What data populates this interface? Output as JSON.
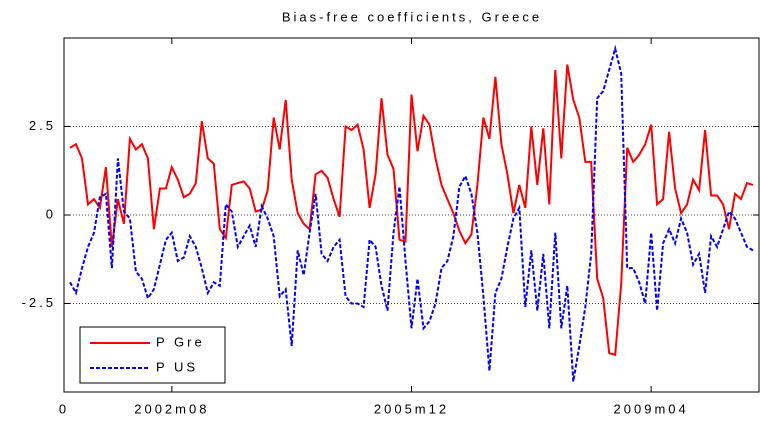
{
  "chart_data": {
    "type": "line",
    "title": "Bias-free coefficients, Greece",
    "x": [
      1,
      2,
      3,
      4,
      5,
      6,
      7,
      8,
      9,
      10,
      11,
      12,
      13,
      14,
      15,
      16,
      17,
      18,
      19,
      20,
      21,
      22,
      23,
      24,
      25,
      26,
      27,
      28,
      29,
      30,
      31,
      32,
      33,
      34,
      35,
      36,
      37,
      38,
      39,
      40,
      41,
      42,
      43,
      44,
      45,
      46,
      47,
      48,
      49,
      50,
      51,
      52,
      53,
      54,
      55,
      56,
      57,
      58,
      59,
      60,
      61,
      62,
      63,
      64,
      65,
      66,
      67,
      68,
      69,
      70,
      71,
      72,
      73,
      74,
      75,
      76,
      77,
      78,
      79,
      80,
      81,
      82,
      83,
      84,
      85,
      86,
      87,
      88,
      89,
      90,
      91,
      92,
      93,
      94,
      95,
      96,
      97,
      98,
      99,
      100,
      101,
      102,
      103,
      104,
      105,
      106,
      107,
      108,
      109,
      110,
      111,
      112,
      113,
      114,
      115
    ],
    "series": [
      {
        "name": "P Gre",
        "color": "#ff0000",
        "style": "solid",
        "values": [
          1.9,
          2.0,
          1.6,
          0.3,
          0.45,
          0.2,
          1.35,
          -0.9,
          0.45,
          -0.25,
          2.15,
          1.85,
          2.0,
          1.6,
          -0.4,
          0.75,
          0.75,
          1.35,
          1.0,
          0.5,
          0.6,
          0.9,
          2.65,
          1.6,
          1.45,
          -0.4,
          -0.65,
          0.85,
          0.9,
          0.95,
          0.75,
          0.1,
          0.15,
          0.7,
          2.75,
          1.85,
          3.25,
          1.0,
          0.05,
          -0.25,
          -0.4,
          1.15,
          1.25,
          1.05,
          0.45,
          -0.05,
          2.5,
          2.4,
          2.55,
          1.85,
          0.2,
          1.15,
          3.3,
          1.7,
          1.3,
          -0.7,
          -0.75,
          3.4,
          1.8,
          2.8,
          2.55,
          1.6,
          0.85,
          0.45,
          0.05,
          -0.45,
          -0.8,
          -0.55,
          0.85,
          2.75,
          2.15,
          3.9,
          2.0,
          1.15,
          0.05,
          0.85,
          0.2,
          2.5,
          0.85,
          2.45,
          0.3,
          4.1,
          1.6,
          4.25,
          3.25,
          2.75,
          1.5,
          1.5,
          -1.8,
          -2.35,
          -3.9,
          -3.95,
          -1.95,
          1.9,
          1.5,
          1.7,
          2.0,
          2.55,
          0.3,
          0.45,
          2.35,
          0.75,
          0.05,
          0.3,
          1.0,
          0.7,
          2.4,
          0.55,
          0.55,
          0.3,
          -0.4,
          0.6,
          0.45,
          0.9,
          0.85
        ]
      },
      {
        "name": "P US",
        "color": "#0000ff",
        "style": "dashed",
        "values": [
          -1.9,
          -2.2,
          -1.5,
          -0.9,
          -0.5,
          0.5,
          0.6,
          -1.5,
          1.6,
          0.1,
          -0.1,
          -1.6,
          -1.8,
          -2.35,
          -2.1,
          -1.4,
          -0.7,
          -0.5,
          -1.3,
          -1.2,
          -0.6,
          -0.9,
          -1.5,
          -2.2,
          -1.9,
          -2.0,
          0.3,
          0.1,
          -0.9,
          -0.6,
          -0.3,
          -0.9,
          0.25,
          -0.1,
          -0.6,
          -2.3,
          -2.1,
          -3.7,
          -1.0,
          -1.7,
          -0.5,
          0.6,
          -1.1,
          -1.3,
          -0.9,
          -0.7,
          -2.3,
          -2.5,
          -2.5,
          -2.6,
          -0.7,
          -0.9,
          -2.0,
          -2.7,
          -0.5,
          0.8,
          -1.3,
          -3.2,
          -1.8,
          -3.2,
          -3.0,
          -2.5,
          -1.5,
          -1.3,
          -0.6,
          0.8,
          1.1,
          0.6,
          -0.5,
          -2.3,
          -4.4,
          -2.2,
          -1.8,
          -0.9,
          -0.1,
          0.2,
          -2.6,
          -1.0,
          -2.7,
          -1.1,
          -3.2,
          -0.5,
          -3.2,
          -2.0,
          -4.7,
          -3.7,
          -2.6,
          -1.1,
          3.3,
          3.5,
          4.1,
          4.7,
          4.0,
          -1.5,
          -1.5,
          -1.9,
          -2.5,
          -0.5,
          -2.7,
          -0.8,
          -0.4,
          -0.8,
          -0.1,
          -0.5,
          -1.4,
          -1.1,
          -2.2,
          -0.6,
          -0.9,
          -0.4,
          0.1,
          -0.1,
          -0.5,
          -0.9,
          -1.0
        ]
      }
    ],
    "xlim": [
      0,
      116
    ],
    "xticks": [
      0,
      {
        "value": 18,
        "label": "2002m08"
      },
      {
        "value": 58,
        "label": "2005m12"
      },
      {
        "value": 98,
        "label": "2009m04"
      }
    ],
    "ylim": [
      -5,
      5
    ],
    "yticks": [
      -2.5,
      0,
      2.5
    ],
    "grid": true,
    "legend": "lower left"
  }
}
